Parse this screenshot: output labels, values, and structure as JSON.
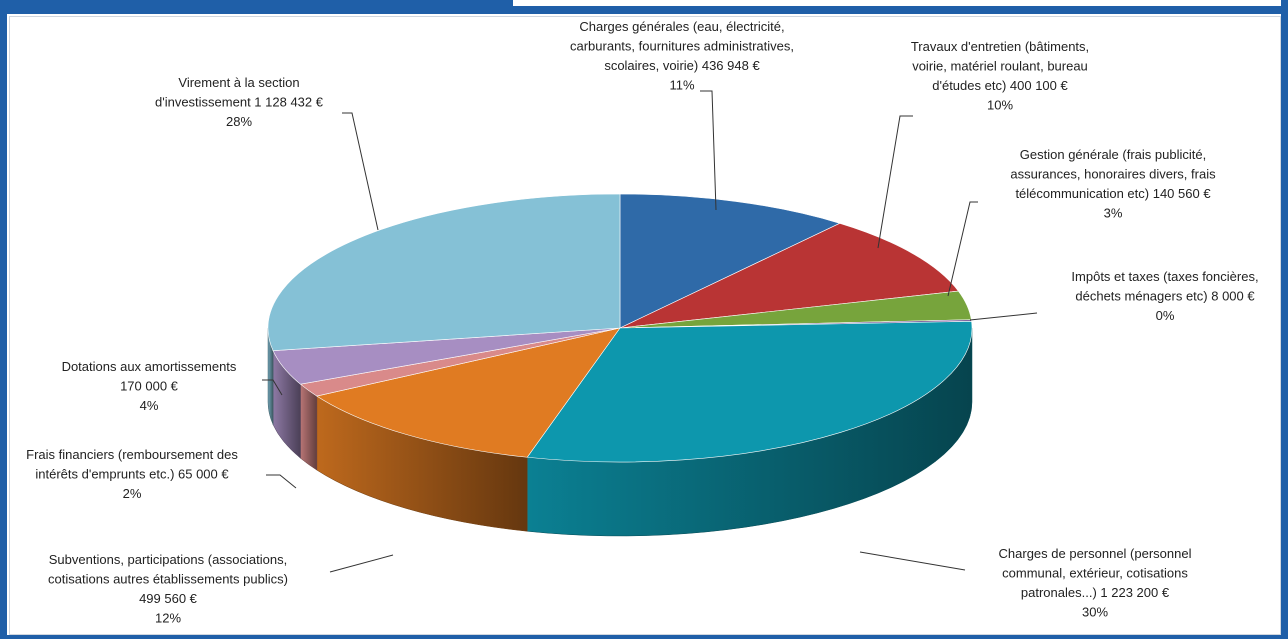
{
  "colors": {
    "frame": "#1f5fa8",
    "leader": "#333333"
  },
  "chart_data": {
    "type": "pie",
    "style": "3d-exploded-none",
    "title": "",
    "slices": [
      {
        "label_lines": [
          "Charges générales (eau, électricité,",
          "carburants, fournitures administratives,",
          "scolaires, voirie) 436 948 €",
          "11%"
        ],
        "value": 436948,
        "percent": 11,
        "color": "#2f6aa8"
      },
      {
        "label_lines": [
          "Travaux d'entretien (bâtiments,",
          "voirie, matériel roulant, bureau",
          "d'études etc) 400 100 €",
          "10%"
        ],
        "value": 400100,
        "percent": 10,
        "color": "#b93434"
      },
      {
        "label_lines": [
          "Gestion générale (frais publicité,",
          "assurances, honoraires divers, frais",
          "télécommunication etc)  140 560 €",
          "3%"
        ],
        "value": 140560,
        "percent": 3,
        "color": "#77a43c"
      },
      {
        "label_lines": [
          "Impôts et taxes (taxes foncières,",
          "déchets ménagers etc)  8 000 €",
          "0%"
        ],
        "value": 8000,
        "percent": 0,
        "color": "#6e4f92"
      },
      {
        "label_lines": [
          "Charges de personnel (personnel",
          "communal, extérieur, cotisations",
          "patronales...) 1 223 200 €",
          "30%"
        ],
        "value": 1223200,
        "percent": 30,
        "color": "#0d97ad"
      },
      {
        "label_lines": [
          "Subventions, participations (associations,",
          "cotisations autres établissements publics)",
          "499 560 €",
          "12%"
        ],
        "value": 499560,
        "percent": 12,
        "color": "#e07b22"
      },
      {
        "label_lines": [
          "Frais financiers (remboursement des",
          "intérêts d'emprunts etc.)  65 000 €",
          "2%"
        ],
        "value": 65000,
        "percent": 2,
        "color": "#d98a8a"
      },
      {
        "label_lines": [
          "Dotations aux amortissements",
          "170 000 €",
          "4%"
        ],
        "value": 170000,
        "percent": 4,
        "color": "#a78ec2"
      },
      {
        "label_lines": [
          "Virement à la section",
          "d'investissement   1 128 432 €",
          "28%"
        ],
        "value": 1128432,
        "percent": 28,
        "color": "#85c1d6"
      }
    ]
  }
}
